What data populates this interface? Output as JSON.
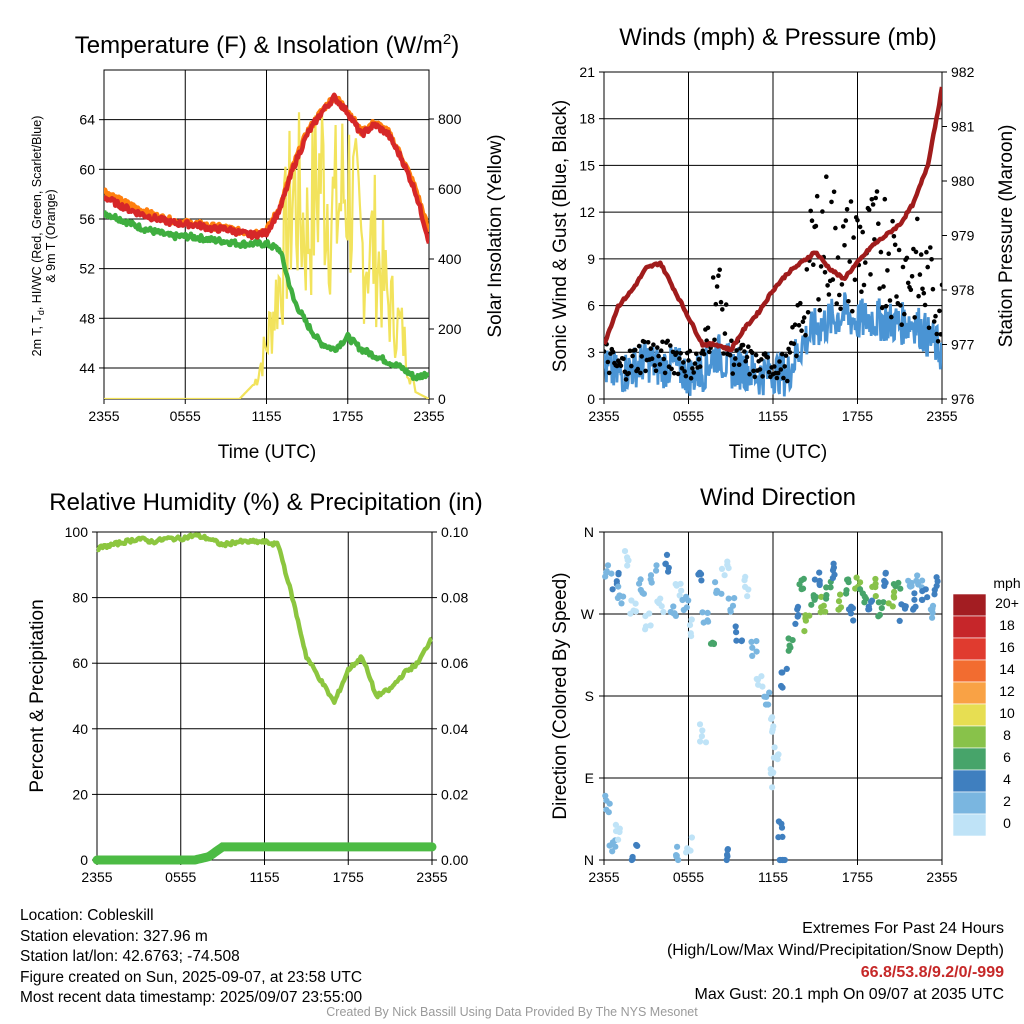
{
  "panels": {
    "temperature": {
      "title_main": "Temperature (F) & Insolation (W/m",
      "title_sup": "2",
      "title_end": ")",
      "ylabel_left_line1": "2m T, T",
      "ylabel_left_sub": "d",
      "ylabel_left_line1b": ", HI/WC (Red, Green, Scarlet/Blue)",
      "ylabel_left_line2": "& 9m T (Orange)",
      "ylabel_right": "Solar Insolation (Yellow)",
      "xlabel": "Time (UTC)"
    },
    "winds": {
      "title": "Winds (mph) & Pressure (mb)",
      "ylabel_left": "Sonic Wind & Gust (Blue, Black)",
      "ylabel_right": "Station Pressure (Maroon)",
      "xlabel": "Time (UTC)"
    },
    "humidity": {
      "title": "Relative Humidity (%) & Precipitation (in)",
      "ylabel_left": "Percent & Precipitation"
    },
    "direction": {
      "title": "Wind Direction",
      "ylabel_left": "Direction (Colored By Speed)",
      "colorbar_title": "mph",
      "colorbar_labels": [
        "20+",
        "18",
        "16",
        "14",
        "12",
        "10",
        "8",
        "6",
        "4",
        "2",
        "0"
      ],
      "colorbar_colors": [
        "#a31d22",
        "#c6262a",
        "#e03b2f",
        "#f26c30",
        "#f9a245",
        "#e7de52",
        "#88c24a",
        "#47a46a",
        "#3f7fbf",
        "#7ab6e0",
        "#bfe3f7"
      ]
    }
  },
  "info": {
    "location": "Location: Cobleskill",
    "elevation": "Station elevation: 327.96 m",
    "latlon": "Station lat/lon: 42.6763; -74.508",
    "created": "Figure created on Sun, 2025-09-07, at 23:58 UTC",
    "recent": "Most recent data timestamp: 2025/09/07 23:55:00"
  },
  "extremes": {
    "title": "Extremes For Past 24 Hours",
    "subtitle": "(High/Low/Max Wind/Precipitation/Snow Depth)",
    "values": "66.8/53.8/9.2/0/-999",
    "max_gust": "Max Gust: 20.1 mph On 09/07 at 2035 UTC"
  },
  "credit": "Created By Nick Bassill Using Data Provided By The NYS Mesonet",
  "chart_data": [
    {
      "type": "line",
      "title": "Temperature (F) & Insolation (W/m2)",
      "xlabel": "Time (UTC)",
      "ylabel": "2m T, Td, HI/WC (Red, Green, Scarlet/Blue) & 9m T (Orange)",
      "ylabel_right": "Solar Insolation (Yellow)",
      "x_ticks": [
        "2355",
        "0555",
        "1155",
        "1755",
        "2355"
      ],
      "y_ticks": [
        44,
        48,
        52,
        56,
        60,
        64
      ],
      "y_right_ticks": [
        0,
        200,
        400,
        600,
        800
      ],
      "ylim": [
        41.5,
        68
      ],
      "ylim_right": [
        0,
        940
      ],
      "x_hours": [
        0,
        1,
        2,
        3,
        4,
        5,
        6,
        7,
        8,
        9,
        10,
        11,
        12,
        13,
        14,
        15,
        16,
        17,
        18,
        19,
        20,
        21,
        22,
        23,
        24
      ],
      "series": [
        {
          "color": "#d62728",
          "values": [
            57.8,
            57.2,
            56.7,
            56.3,
            56.0,
            55.7,
            55.6,
            55.5,
            55.2,
            55.2,
            54.9,
            54.7,
            54.9,
            56.8,
            60.2,
            62.8,
            64.5,
            65.8,
            64.6,
            62.8,
            63.6,
            62.8,
            60.8,
            58.2,
            54.2
          ]
        },
        {
          "color": "#ff7f0e",
          "values": [
            58.3,
            57.6,
            57.1,
            56.6,
            56.2,
            55.9,
            55.7,
            55.6,
            55.4,
            55.3,
            55.0,
            54.9,
            55.1,
            57.0,
            60.4,
            63.0,
            64.6,
            65.9,
            64.8,
            63.0,
            63.8,
            63.0,
            61.0,
            58.5,
            55.0
          ]
        },
        {
          "color": "#3fae3f",
          "values": [
            56.5,
            56.1,
            55.6,
            55.2,
            54.9,
            54.6,
            54.6,
            54.5,
            54.3,
            54.2,
            54.0,
            54.0,
            54.0,
            53.5,
            49.5,
            47.5,
            46.0,
            45.5,
            46.5,
            45.5,
            45.0,
            44.5,
            44.0,
            43.2,
            43.6
          ]
        },
        {
          "color": "#f2e35c",
          "values": [
            0,
            0,
            0,
            0,
            0,
            0,
            0,
            0,
            0,
            0,
            0,
            40,
            210,
            480,
            820,
            650,
            900,
            720,
            860,
            580,
            600,
            380,
            260,
            20,
            0
          ]
        }
      ]
    },
    {
      "type": "line",
      "title": "Winds (mph) & Pressure (mb)",
      "xlabel": "Time (UTC)",
      "ylabel": "Sonic Wind & Gust (Blue, Black)",
      "ylabel_right": "Station Pressure (Maroon)",
      "x_ticks": [
        "2355",
        "0555",
        "1155",
        "1755",
        "2355"
      ],
      "y_ticks": [
        0,
        3,
        6,
        9,
        12,
        15,
        18,
        21
      ],
      "y_right_ticks": [
        976,
        977,
        978,
        979,
        980,
        981,
        982
      ],
      "ylim": [
        0,
        21
      ],
      "ylim_right": [
        976,
        982
      ],
      "x_hours": [
        0,
        1,
        2,
        3,
        4,
        5,
        6,
        7,
        8,
        9,
        10,
        11,
        12,
        13,
        14,
        15,
        16,
        17,
        18,
        19,
        20,
        21,
        22,
        23,
        24
      ],
      "series": [
        {
          "color": "#4a94d4",
          "values": [
            2.0,
            1.5,
            2.0,
            2.5,
            2.0,
            2.2,
            1.5,
            1.8,
            3.0,
            2.0,
            2.0,
            1.5,
            1.8,
            1.5,
            3.5,
            4.5,
            5.0,
            5.5,
            5.0,
            5.2,
            5.0,
            4.8,
            5.0,
            4.0,
            3.0
          ]
        },
        {
          "color": "#000000",
          "values": [
            3.5,
            2.5,
            3.0,
            3.8,
            3.2,
            3.5,
            2.8,
            3.0,
            9.0,
            3.5,
            3.2,
            2.5,
            2.8,
            2.5,
            6.5,
            12.5,
            13.0,
            11.0,
            12.0,
            11.5,
            12.5,
            10.0,
            10.5,
            9.0,
            7.0
          ]
        },
        {
          "color": "#a01c1c",
          "values": [
            977.0,
            977.7,
            978.0,
            978.4,
            978.5,
            978.0,
            977.5,
            977.0,
            977.0,
            976.9,
            977.3,
            977.6,
            978.0,
            978.3,
            978.5,
            978.7,
            978.4,
            978.2,
            978.5,
            978.8,
            979.0,
            979.2,
            979.6,
            980.3,
            981.7
          ]
        }
      ]
    },
    {
      "type": "line",
      "title": "Relative Humidity (%) & Precipitation (in)",
      "ylabel": "Percent & Precipitation",
      "x_ticks": [
        "2355",
        "0555",
        "1155",
        "1755",
        "2355"
      ],
      "y_ticks": [
        0,
        20,
        40,
        60,
        80,
        100
      ],
      "y_right_ticks": [
        "0.00",
        "0.02",
        "0.04",
        "0.06",
        "0.08",
        "0.10"
      ],
      "ylim": [
        0,
        100
      ],
      "ylim_right": [
        0,
        0.1
      ],
      "x_hours": [
        0,
        1,
        2,
        3,
        4,
        5,
        6,
        7,
        8,
        9,
        10,
        11,
        12,
        13,
        14,
        15,
        16,
        17,
        18,
        19,
        20,
        21,
        22,
        23,
        24
      ],
      "series": [
        {
          "color": "#8cc63f",
          "values": [
            95,
            96,
            97,
            98,
            97,
            98,
            98,
            99,
            98,
            96,
            97,
            97,
            97,
            96,
            80,
            62,
            55,
            48,
            58,
            62,
            50,
            52,
            57,
            60,
            68
          ]
        },
        {
          "color": "#4cbb44",
          "values": [
            0,
            0,
            0,
            0,
            0,
            0,
            0,
            0,
            0.001,
            0.004,
            0.004,
            0.004,
            0.004,
            0.004,
            0.004,
            0.004,
            0.004,
            0.004,
            0.004,
            0.004,
            0.004,
            0.004,
            0.004,
            0.004,
            0.004
          ]
        }
      ]
    },
    {
      "type": "scatter",
      "title": "Wind Direction",
      "ylabel": "Direction (Colored By Speed)",
      "x_ticks": [
        "2355",
        "0555",
        "1155",
        "1755",
        "2355"
      ],
      "y_ticks": [
        "N",
        "E",
        "S",
        "W",
        "N"
      ],
      "ylim": [
        0,
        360
      ],
      "points": [
        {
          "hour": 0.3,
          "dir": 320,
          "mph": 2
        },
        {
          "hour": 0.8,
          "dir": 305,
          "mph": 4
        },
        {
          "hour": 1.2,
          "dir": 290,
          "mph": 2
        },
        {
          "hour": 1.6,
          "dir": 330,
          "mph": 0
        },
        {
          "hour": 2.1,
          "dir": 275,
          "mph": 0
        },
        {
          "hour": 2.6,
          "dir": 300,
          "mph": 2
        },
        {
          "hour": 3.1,
          "dir": 260,
          "mph": 0
        },
        {
          "hour": 3.5,
          "dir": 315,
          "mph": 2
        },
        {
          "hour": 4.0,
          "dir": 280,
          "mph": 0
        },
        {
          "hour": 4.4,
          "dir": 325,
          "mph": 4
        },
        {
          "hour": 4.9,
          "dir": 270,
          "mph": 2
        },
        {
          "hour": 5.3,
          "dir": 300,
          "mph": 0
        },
        {
          "hour": 5.8,
          "dir": 285,
          "mph": 2
        },
        {
          "hour": 6.2,
          "dir": 255,
          "mph": 0
        },
        {
          "hour": 6.7,
          "dir": 310,
          "mph": 4
        },
        {
          "hour": 7.2,
          "dir": 270,
          "mph": 2
        },
        {
          "hour": 7.6,
          "dir": 245,
          "mph": 6
        },
        {
          "hour": 8.1,
          "dir": 295,
          "mph": 2
        },
        {
          "hour": 8.6,
          "dir": 320,
          "mph": 0
        },
        {
          "hour": 9.1,
          "dir": 280,
          "mph": 2
        },
        {
          "hour": 9.6,
          "dir": 250,
          "mph": 4
        },
        {
          "hour": 10.1,
          "dir": 300,
          "mph": 0
        },
        {
          "hour": 10.6,
          "dir": 230,
          "mph": 2
        },
        {
          "hour": 11.1,
          "dir": 200,
          "mph": 0
        },
        {
          "hour": 11.5,
          "dir": 175,
          "mph": 2
        },
        {
          "hour": 11.9,
          "dir": 150,
          "mph": 0
        },
        {
          "hour": 12.3,
          "dir": 120,
          "mph": 0
        },
        {
          "hour": 12.8,
          "dir": 200,
          "mph": 4
        },
        {
          "hour": 13.2,
          "dir": 240,
          "mph": 6
        },
        {
          "hour": 13.6,
          "dir": 270,
          "mph": 4
        },
        {
          "hour": 14.0,
          "dir": 300,
          "mph": 6
        },
        {
          "hour": 14.4,
          "dir": 260,
          "mph": 8
        },
        {
          "hour": 14.8,
          "dir": 290,
          "mph": 6
        },
        {
          "hour": 15.2,
          "dir": 310,
          "mph": 4
        },
        {
          "hour": 15.6,
          "dir": 280,
          "mph": 8
        },
        {
          "hour": 16.0,
          "dir": 295,
          "mph": 6
        },
        {
          "hour": 16.4,
          "dir": 315,
          "mph": 4
        },
        {
          "hour": 16.8,
          "dir": 285,
          "mph": 8
        },
        {
          "hour": 17.2,
          "dir": 300,
          "mph": 6
        },
        {
          "hour": 17.6,
          "dir": 270,
          "mph": 4
        },
        {
          "hour": 18.0,
          "dir": 305,
          "mph": 8
        },
        {
          "hour": 18.4,
          "dir": 290,
          "mph": 6
        },
        {
          "hour": 18.8,
          "dir": 280,
          "mph": 4
        },
        {
          "hour": 19.2,
          "dir": 300,
          "mph": 8
        },
        {
          "hour": 19.6,
          "dir": 275,
          "mph": 6
        },
        {
          "hour": 20.0,
          "dir": 310,
          "mph": 4
        },
        {
          "hour": 20.4,
          "dir": 285,
          "mph": 8
        },
        {
          "hour": 20.8,
          "dir": 295,
          "mph": 6
        },
        {
          "hour": 21.2,
          "dir": 270,
          "mph": 4
        },
        {
          "hour": 21.6,
          "dir": 300,
          "mph": 2
        },
        {
          "hour": 22.0,
          "dir": 285,
          "mph": 4
        },
        {
          "hour": 22.4,
          "dir": 310,
          "mph": 2
        },
        {
          "hour": 22.8,
          "dir": 290,
          "mph": 4
        },
        {
          "hour": 23.2,
          "dir": 275,
          "mph": 2
        },
        {
          "hour": 23.6,
          "dir": 300,
          "mph": 4
        },
        {
          "hour": 0.2,
          "dir": 60,
          "mph": 2
        },
        {
          "hour": 0.6,
          "dir": 20,
          "mph": 2
        },
        {
          "hour": 1.0,
          "dir": 30,
          "mph": 0
        },
        {
          "hour": 2.2,
          "dir": 10,
          "mph": 4
        },
        {
          "hour": 5.2,
          "dir": 5,
          "mph": 2
        },
        {
          "hour": 6.0,
          "dir": 15,
          "mph": 0
        },
        {
          "hour": 8.8,
          "dir": 3,
          "mph": 4
        },
        {
          "hour": 12.6,
          "dir": 35,
          "mph": 4
        },
        {
          "hour": 12.7,
          "dir": 2,
          "mph": 4
        },
        {
          "hour": 11.8,
          "dir": 90,
          "mph": 0
        },
        {
          "hour": 7.0,
          "dir": 140,
          "mph": 0
        }
      ]
    }
  ]
}
